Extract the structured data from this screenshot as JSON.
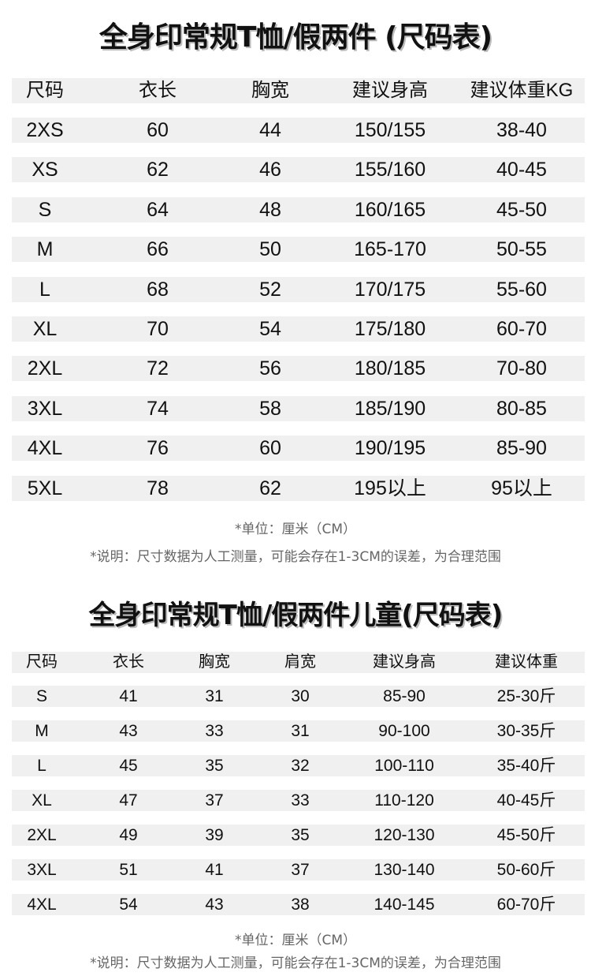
{
  "adult": {
    "title": "全身印常规T恤/假两件 (尺码表)",
    "headers": [
      "尺码",
      "衣长",
      "胸宽",
      "建议身高",
      "建议体重KG"
    ],
    "rows": [
      [
        "2XS",
        "60",
        "44",
        "150/155",
        "38-40"
      ],
      [
        "XS",
        "62",
        "46",
        "155/160",
        "40-45"
      ],
      [
        "S",
        "64",
        "48",
        "160/165",
        "45-50"
      ],
      [
        "M",
        "66",
        "50",
        "165-170",
        "50-55"
      ],
      [
        "L",
        "68",
        "52",
        "170/175",
        "55-60"
      ],
      [
        "XL",
        "70",
        "54",
        "175/180",
        "60-70"
      ],
      [
        "2XL",
        "72",
        "56",
        "180/185",
        "70-80"
      ],
      [
        "3XL",
        "74",
        "58",
        "185/190",
        "80-85"
      ],
      [
        "4XL",
        "76",
        "60",
        "190/195",
        "85-90"
      ],
      [
        "5XL",
        "78",
        "62",
        "195以上",
        "95以上"
      ]
    ],
    "unit_note": "*单位：厘米（CM）",
    "explain_note": "*说明：尺寸数据为人工测量，可能会存在1-3CM的误差，为合理范围"
  },
  "kids": {
    "title": "全身印常规T恤/假两件儿童(尺码表)",
    "headers": [
      "尺码",
      "衣长",
      "胸宽",
      "肩宽",
      "建议身高",
      "建议体重"
    ],
    "rows": [
      [
        "S",
        "41",
        "31",
        "30",
        "85-90",
        "25-30斤"
      ],
      [
        "M",
        "43",
        "33",
        "31",
        "90-100",
        "30-35斤"
      ],
      [
        "L",
        "45",
        "35",
        "32",
        "100-110",
        "35-40斤"
      ],
      [
        "XL",
        "47",
        "37",
        "33",
        "110-120",
        "40-45斤"
      ],
      [
        "2XL",
        "49",
        "39",
        "35",
        "120-130",
        "45-50斤"
      ],
      [
        "3XL",
        "51",
        "41",
        "37",
        "130-140",
        "50-60斤"
      ],
      [
        "4XL",
        "54",
        "43",
        "38",
        "140-145",
        "60-70斤"
      ]
    ],
    "unit_note": "*单位：厘米（CM）",
    "explain_note": "*说明：尺寸数据为人工测量，可能会存在1-3CM的误差，为合理范围"
  }
}
